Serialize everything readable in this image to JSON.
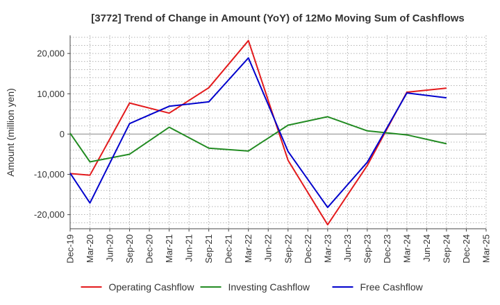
{
  "chart_data": {
    "type": "line",
    "title": "[3772]  Trend of Change in Amount (YoY) of 12Mo Moving Sum of Cashflows",
    "xlabel": "",
    "ylabel": "Amount (million yen)",
    "ylim": [
      -23500,
      24500
    ],
    "yticks": [
      20000,
      10000,
      0,
      -10000,
      -20000
    ],
    "ytick_labels": [
      "20,000",
      "10,000",
      "0",
      "-10,000",
      "-20,000"
    ],
    "categories": [
      "Dec-19",
      "Mar-20",
      "Jun-20",
      "Sep-20",
      "Dec-20",
      "Mar-21",
      "Jun-21",
      "Sep-21",
      "Dec-21",
      "Mar-22",
      "Jun-22",
      "Sep-22",
      "Dec-22",
      "Mar-23",
      "Jun-23",
      "Sep-23",
      "Dec-23",
      "Mar-24",
      "Jun-24",
      "Sep-24",
      "Dec-24",
      "Mar-25"
    ],
    "grid": true,
    "legend_position": "bottom",
    "series": [
      {
        "name": "Operating Cashflow",
        "color": "#e31a1c",
        "points": [
          {
            "x": "Dec-19",
            "y": -9800
          },
          {
            "x": "Mar-20",
            "y": -10200
          },
          {
            "x": "Sep-20",
            "y": 7700
          },
          {
            "x": "Mar-21",
            "y": 5200
          },
          {
            "x": "Sep-21",
            "y": 11500
          },
          {
            "x": "Mar-22",
            "y": 23200
          },
          {
            "x": "Sep-22",
            "y": -6500
          },
          {
            "x": "Mar-23",
            "y": -22500
          },
          {
            "x": "Sep-23",
            "y": -7800
          },
          {
            "x": "Mar-24",
            "y": 10400
          },
          {
            "x": "Sep-24",
            "y": 11400
          }
        ]
      },
      {
        "name": "Investing Cashflow",
        "color": "#228b22",
        "points": [
          {
            "x": "Dec-19",
            "y": 200
          },
          {
            "x": "Mar-20",
            "y": -6900
          },
          {
            "x": "Sep-20",
            "y": -5000
          },
          {
            "x": "Mar-21",
            "y": 1700
          },
          {
            "x": "Sep-21",
            "y": -3500
          },
          {
            "x": "Mar-22",
            "y": -4200
          },
          {
            "x": "Sep-22",
            "y": 2200
          },
          {
            "x": "Mar-23",
            "y": 4300
          },
          {
            "x": "Sep-23",
            "y": 800
          },
          {
            "x": "Mar-24",
            "y": -200
          },
          {
            "x": "Sep-24",
            "y": -2400
          }
        ]
      },
      {
        "name": "Free Cashflow",
        "color": "#0000cc",
        "points": [
          {
            "x": "Dec-19",
            "y": -9700
          },
          {
            "x": "Mar-20",
            "y": -17100
          },
          {
            "x": "Sep-20",
            "y": 2600
          },
          {
            "x": "Mar-21",
            "y": 6900
          },
          {
            "x": "Sep-21",
            "y": 8000
          },
          {
            "x": "Mar-22",
            "y": 18900
          },
          {
            "x": "Sep-22",
            "y": -4300
          },
          {
            "x": "Mar-23",
            "y": -18200
          },
          {
            "x": "Sep-23",
            "y": -7000
          },
          {
            "x": "Mar-24",
            "y": 10200
          },
          {
            "x": "Sep-24",
            "y": 9000
          }
        ]
      }
    ]
  }
}
